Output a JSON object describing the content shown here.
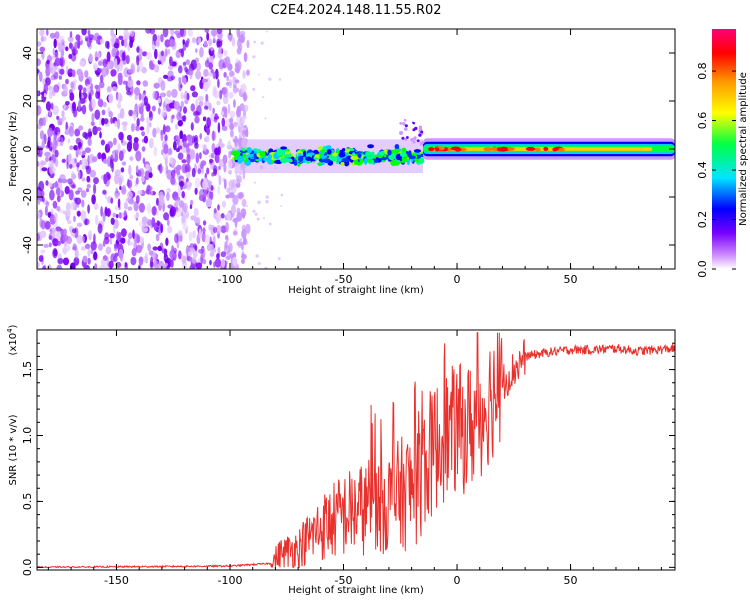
{
  "title": "C2E4.2024.148.11.55.R02",
  "chart_data": [
    {
      "type": "heatmap",
      "name": "spectrogram",
      "xlabel": "Height of straight line (km)",
      "ylabel": "Frequency (Hz)",
      "xlim": [
        -185,
        96
      ],
      "ylim": [
        -50,
        50
      ],
      "xticks": [
        -150,
        -100,
        -50,
        0,
        50
      ],
      "yticks": [
        -40,
        -20,
        0,
        20,
        40
      ],
      "colorbar": {
        "label": "Normalized spectral amplitude",
        "range": [
          0,
          0.97
        ],
        "ticks": [
          0.0,
          0.2,
          0.4,
          0.6,
          0.8
        ],
        "tick_labels": [
          "0.0",
          "0.2",
          "0.4",
          "0.6",
          "0.8"
        ],
        "colors": [
          "#ffffff",
          "#9900ff",
          "#0000ff",
          "#00ffff",
          "#00ff00",
          "#ffff00",
          "#ff8800",
          "#ff0000",
          "#ff0088"
        ]
      },
      "segments": [
        {
          "x_from": -185,
          "x_to": -100,
          "description": "noise, spread across full frequency range"
        },
        {
          "x_from": -98,
          "x_to": -15,
          "center_hz": -3,
          "halfwidth_hz": 5
        },
        {
          "x_from": -15,
          "x_to": 96,
          "center_hz": 0,
          "halfwidth_hz": 3,
          "peak_amplitude": 0.9
        }
      ]
    },
    {
      "type": "line",
      "name": "snr",
      "xlabel": "Height of straight line (km)",
      "ylabel": "SNR (10 * v/v)",
      "yscale_label": "(x10",
      "yscale_exponent": "4",
      "xlim": [
        -185,
        96
      ],
      "ylim": [
        -0.02,
        1.8
      ],
      "xticks": [
        -150,
        -100,
        -50,
        0,
        50
      ],
      "yticks": [
        0.0,
        0.5,
        1.0,
        1.5
      ],
      "ytick_labels": [
        "0.0",
        "0.5",
        "1.0",
        "1.5"
      ],
      "color": "#e8302c",
      "series": [
        {
          "name": "SNR",
          "x": [
            -185,
            -100,
            -82,
            -78,
            -70,
            -60,
            -50,
            -40,
            -30,
            -20,
            -15,
            -10,
            -5,
            0,
            5,
            10,
            15,
            20,
            25,
            30,
            40,
            50,
            60,
            70,
            80,
            96
          ],
          "y": [
            0.0,
            0.01,
            0.03,
            0.1,
            0.15,
            0.3,
            0.4,
            0.45,
            0.5,
            0.6,
            0.75,
            0.9,
            1.0,
            1.05,
            1.05,
            1.15,
            1.3,
            1.4,
            1.5,
            1.6,
            1.63,
            1.65,
            1.65,
            1.66,
            1.64,
            1.66
          ]
        }
      ]
    }
  ]
}
